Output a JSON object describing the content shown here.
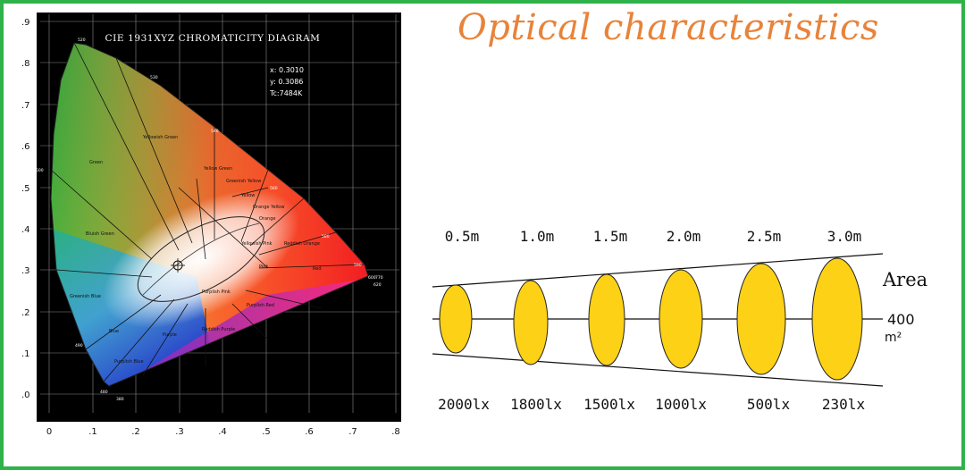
{
  "page": {
    "title": "Optical characteristics",
    "border_color": "#2fb24a",
    "title_color": "#e8833a"
  },
  "cie": {
    "title": "CIE 1931XYZ CHROMATICITY DIAGRAM",
    "readout": {
      "x": "x: 0.3010",
      "y": "y: 0.3086",
      "tc": "Tc:7484K"
    },
    "x_ticks": [
      "0",
      ".1",
      ".2",
      ".3",
      ".4",
      ".5",
      ".6",
      ".7",
      ".8"
    ],
    "y_ticks": [
      ".0",
      ".1",
      ".2",
      ".3",
      ".4",
      ".5",
      ".6",
      ".7",
      ".8",
      ".9"
    ],
    "wavelengths": [
      "520",
      "530",
      "540",
      "560",
      "580",
      "590",
      "600",
      "620",
      "770",
      "500",
      "490",
      "480",
      "380"
    ],
    "regions": [
      "Green",
      "Yellowish Green",
      "Yellow Green",
      "Greenish Yellow",
      "Yellow",
      "Orange Yellow",
      "Orange",
      "Reddish Orange",
      "Red",
      "Yellowish Pink",
      "Pink",
      "Purplish Pink",
      "Purplish Red",
      "Reddish Purple",
      "Purple",
      "Bluish Green",
      "Greenish Blue",
      "Blue",
      "Purplish Blue"
    ]
  },
  "beam": {
    "distances": [
      "0.5m",
      "1.0m",
      "1.5m",
      "2.0m",
      "2.5m",
      "3.0m"
    ],
    "lux": [
      "2000lx",
      "1800lx",
      "1500lx",
      "1000lx",
      "500lx",
      "230lx"
    ],
    "area_label": "Area",
    "area_value": "400",
    "area_unit": "m²",
    "spot_color": "#fcd116"
  }
}
